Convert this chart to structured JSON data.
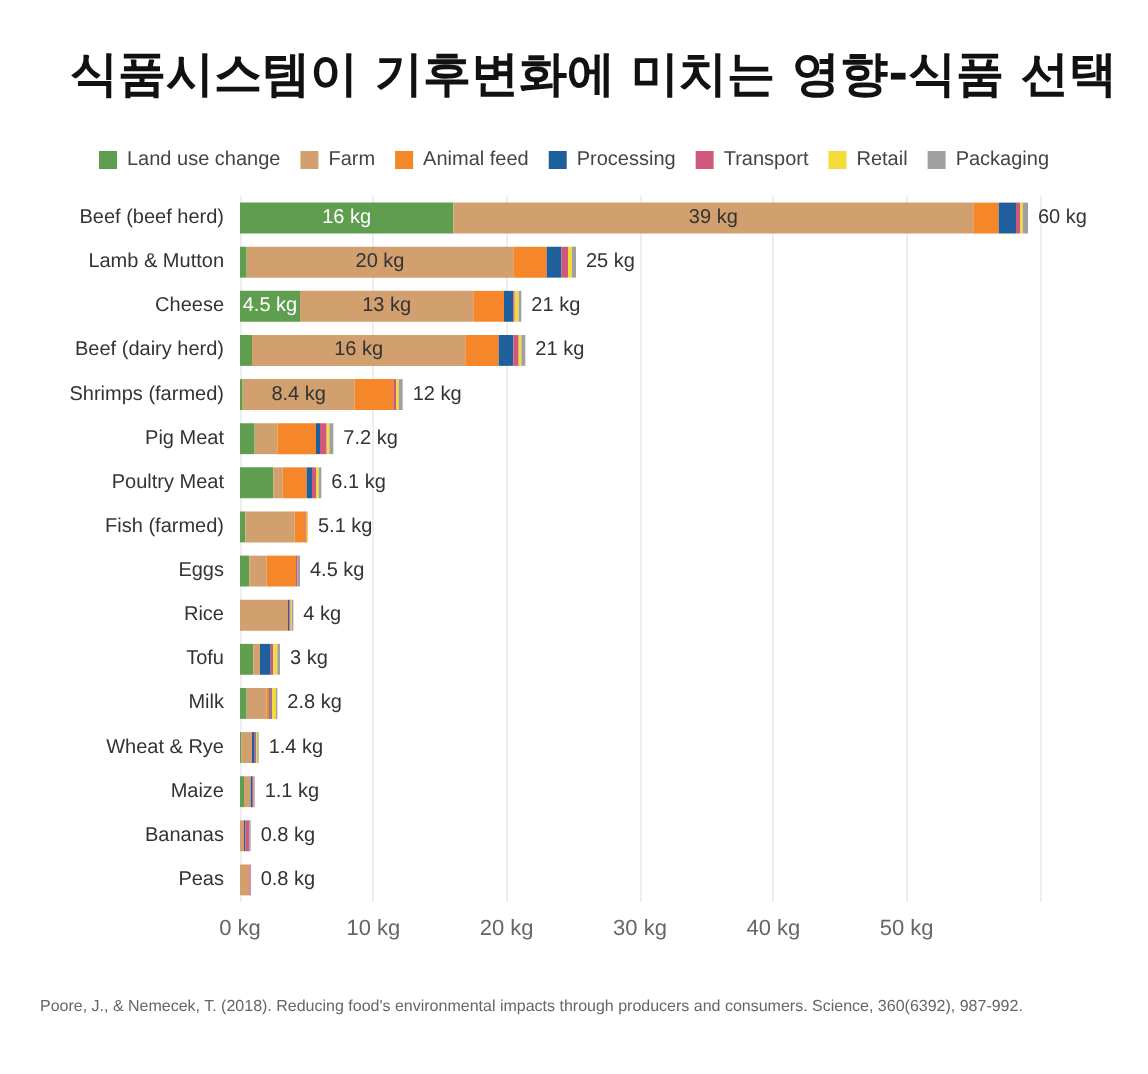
{
  "chart_data": {
    "type": "bar",
    "orientation": "horizontal",
    "stacked": true,
    "title": "식품시스템이 기후변화에 미치는 영향-식품 선택",
    "categories": [
      "Beef (beef herd)",
      "Lamb & Mutton",
      "Cheese",
      "Beef (dairy herd)",
      "Shrimps (farmed)",
      "Pig Meat",
      "Poultry Meat",
      "Fish (farmed)",
      "Eggs",
      "Rice",
      "Tofu",
      "Milk",
      "Wheat & Rye",
      "Maize",
      "Bananas",
      "Peas"
    ],
    "series": [
      {
        "name": "Land use change",
        "color": "#5f9e4f",
        "values": [
          16,
          0.5,
          4.5,
          0.9,
          0.2,
          1.1,
          2.5,
          0.4,
          0.7,
          0,
          1.0,
          0.5,
          0.1,
          0.3,
          0,
          0
        ],
        "value_labels": [
          "16 kg",
          null,
          "4.5 kg",
          null,
          null,
          null,
          null,
          null,
          null,
          null,
          null,
          null,
          null,
          null,
          null,
          null
        ]
      },
      {
        "name": "Farm",
        "color": "#d1a06e",
        "values": [
          39,
          20,
          13,
          16,
          8.4,
          1.7,
          0.7,
          3.7,
          1.3,
          3.6,
          0.5,
          1.5,
          0.8,
          0.5,
          0.3,
          0.7
        ],
        "value_labels": [
          "39 kg",
          "20 kg",
          "13 kg",
          "16 kg",
          "8.4 kg",
          null,
          null,
          null,
          null,
          null,
          null,
          null,
          null,
          null,
          null,
          null
        ]
      },
      {
        "name": "Animal feed",
        "color": "#f5862a",
        "values": [
          1.9,
          2.5,
          2.3,
          2.5,
          2.9,
          2.9,
          1.8,
          0.8,
          2.2,
          0,
          0,
          0.2,
          0,
          0,
          0,
          0
        ]
      },
      {
        "name": "Processing",
        "color": "#1f5f9c",
        "values": [
          1.3,
          1.1,
          0.7,
          1.1,
          0,
          0.3,
          0.4,
          0,
          0,
          0.1,
          0.8,
          0.1,
          0.2,
          0.1,
          0.1,
          0
        ]
      },
      {
        "name": "Transport",
        "color": "#d0587a",
        "values": [
          0.3,
          0.5,
          0.1,
          0.4,
          0.2,
          0.5,
          0.3,
          0.1,
          0.1,
          0.1,
          0.2,
          0.1,
          0.1,
          0.1,
          0.3,
          0.1
        ]
      },
      {
        "name": "Retail",
        "color": "#f2dc3c",
        "values": [
          0.2,
          0.3,
          0.3,
          0.2,
          0.2,
          0.2,
          0.2,
          0.1,
          0,
          0.1,
          0.3,
          0.3,
          0.1,
          0,
          0,
          0
        ]
      },
      {
        "name": "Packaging",
        "color": "#a0a0a0",
        "values": [
          0.4,
          0.3,
          0.2,
          0.3,
          0.3,
          0.3,
          0.2,
          0,
          0.2,
          0.1,
          0.2,
          0.1,
          0.1,
          0.1,
          0.1,
          0
        ]
      }
    ],
    "totals": [
      "60 kg",
      "25 kg",
      "21 kg",
      "21 kg",
      "12 kg",
      "7.2 kg",
      "6.1 kg",
      "5.1 kg",
      "4.5 kg",
      "4 kg",
      "3 kg",
      "2.8 kg",
      "1.4 kg",
      "1.1 kg",
      "0.8 kg",
      "0.8 kg"
    ],
    "xticks": [
      {
        "value": 0,
        "label": "0 kg"
      },
      {
        "value": 10,
        "label": "10 kg"
      },
      {
        "value": 20,
        "label": "20 kg"
      },
      {
        "value": 30,
        "label": "30 kg"
      },
      {
        "value": 40,
        "label": "40 kg"
      },
      {
        "value": 50,
        "label": "50 kg"
      },
      {
        "value": 60,
        "label": null
      }
    ],
    "xlim": [
      0,
      60
    ],
    "grid": "x",
    "legend": "top",
    "annotations": [
      "Poore, J., & Nemecek, T. (2018). Reducing food's environmental impacts through producers and consumers. Science, 360(6392), 987-992."
    ]
  }
}
